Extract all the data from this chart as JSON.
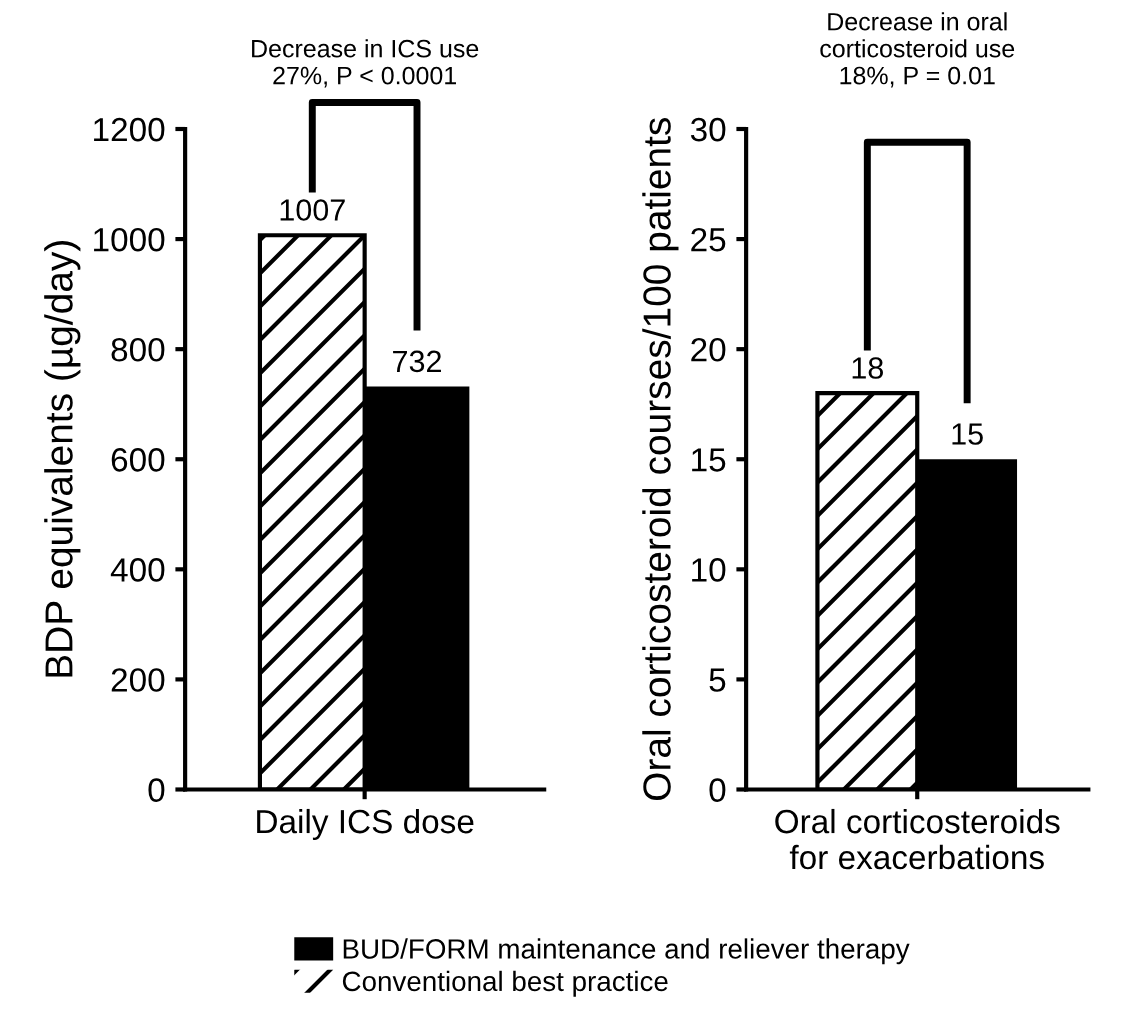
{
  "chart_data": [
    {
      "type": "bar",
      "categories": [
        "Daily ICS dose"
      ],
      "ylabel": "BDP equivalents (µg/day)",
      "ylim": [
        0,
        1200
      ],
      "yticks": [
        0,
        200,
        400,
        600,
        800,
        1000,
        1200
      ],
      "data_labels": true,
      "grid": false,
      "legend": "bottom",
      "annotations": [
        "Decrease in ICS use\n27%, P < 0.0001"
      ],
      "series": [
        {
          "name": "Conventional best practice",
          "color": "#ffffff",
          "values": [
            1007
          ]
        },
        {
          "name": "BUD/FORM maintenance and reliever therapy",
          "color": "#000000",
          "values": [
            732
          ]
        }
      ]
    },
    {
      "type": "bar",
      "categories": [
        "Oral corticosteroids\nfor exacerbations"
      ],
      "ylabel": "Oral corticosteroid courses/100 patients",
      "ylim": [
        0,
        30
      ],
      "yticks": [
        0,
        5,
        10,
        15,
        20,
        25,
        30
      ],
      "data_labels": true,
      "grid": false,
      "annotations": [
        "Decrease in oral\ncorticosteroid use\n18%, P = 0.01"
      ],
      "series": [
        {
          "color": "#ffffff",
          "values": [
            18
          ]
        },
        {
          "color": "#000000",
          "values": [
            15
          ]
        }
      ]
    }
  ]
}
